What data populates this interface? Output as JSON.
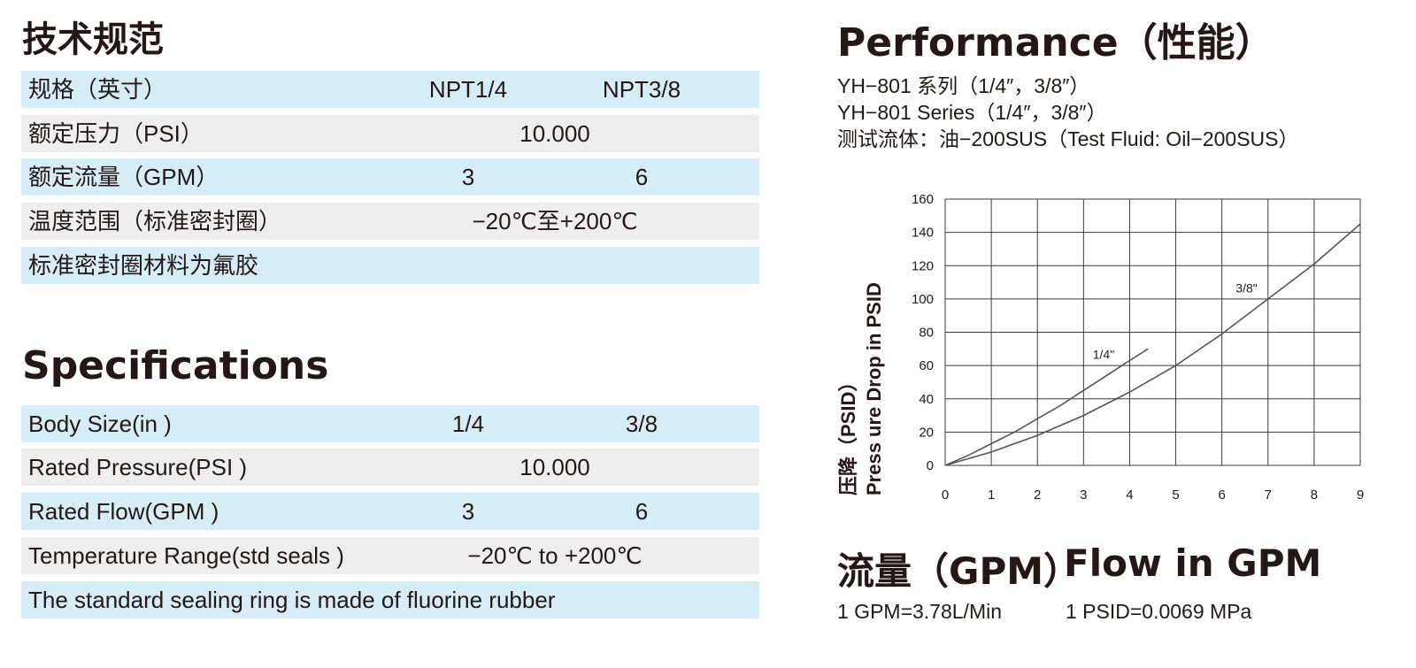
{
  "cn_section": {
    "title": "技术规范",
    "rows": [
      {
        "label": "规格（英寸）",
        "v1": "NPT1/4",
        "v2": "NPT3/8",
        "merged": ""
      },
      {
        "label": "额定压力（PSI）",
        "v1": "",
        "v2": "",
        "merged": "10.000"
      },
      {
        "label": "额定流量（GPM）",
        "v1": "3",
        "v2": "6",
        "merged": ""
      },
      {
        "label": "温度范围（标准密封圈）",
        "v1": "",
        "v2": "",
        "merged": "−20℃至+200℃"
      },
      {
        "label": "标准密封圈材料为氟胶",
        "v1": "",
        "v2": "",
        "merged": ""
      }
    ]
  },
  "en_section": {
    "title": "Specifications",
    "rows": [
      {
        "label": "Body Size(in )",
        "v1": "1/4",
        "v2": "3/8",
        "merged": ""
      },
      {
        "label": "Rated Pressure(PSI )",
        "v1": "",
        "v2": "",
        "merged": "10.000"
      },
      {
        "label": "Rated Flow(GPM )",
        "v1": "3",
        "v2": "6",
        "merged": ""
      },
      {
        "label": "Temperature Range(std seals )",
        "v1": "",
        "v2": "",
        "merged": "−20℃ to +200℃"
      },
      {
        "label": " The standard sealing ring is made of fluorine rubber",
        "v1": "",
        "v2": "",
        "merged": ""
      }
    ]
  },
  "performance": {
    "title": "Performance（性能）",
    "line1": "YH−801 系列（1/4″，3/8″）",
    "line2": "YH−801 Series（1/4″，3/8″）",
    "line3": "测试流体：油−200SUS（Test Fluid: Oil−200SUS）"
  },
  "chart_data": {
    "type": "line",
    "xlim": [
      0,
      9
    ],
    "ylim": [
      0,
      160
    ],
    "x_ticks": [
      "0",
      "1",
      "2",
      "3",
      "4",
      "5",
      "6",
      "7",
      "8",
      "9"
    ],
    "y_ticks": [
      "0",
      "20",
      "40",
      "60",
      "80",
      "100",
      "120",
      "140",
      "160"
    ],
    "ylabel_cn": "压降（PSID）",
    "ylabel_en": "Press ure Drop in PSID",
    "grid": true,
    "series": [
      {
        "name": "1/4\"",
        "x": [
          0,
          0.5,
          1,
          1.5,
          2,
          2.5,
          3,
          3.5,
          4,
          4.4
        ],
        "y": [
          0,
          6,
          13,
          20,
          28,
          36,
          45,
          54,
          63,
          70
        ]
      },
      {
        "name": "3/8\"",
        "x": [
          0,
          1,
          2,
          3,
          4,
          5,
          6,
          7,
          8,
          9
        ],
        "y": [
          0,
          8,
          18,
          30,
          44,
          60,
          79,
          100,
          121,
          145
        ]
      }
    ]
  },
  "bottom": {
    "flow_cn": "流量（GPM）",
    "flow_en": "Flow in GPM",
    "conv1": "1 GPM=3.78L/Min",
    "conv2": "1 PSID=0.0069 MPa"
  }
}
